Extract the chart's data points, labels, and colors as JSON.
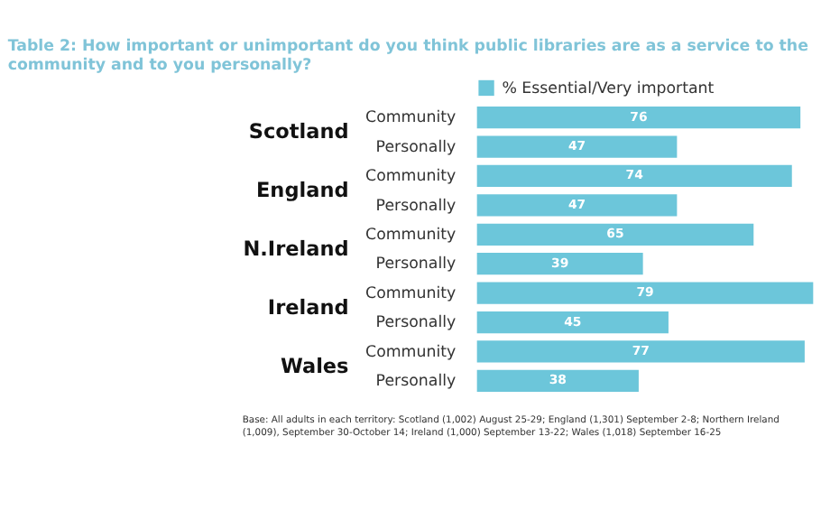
{
  "chart_data": {
    "type": "bar",
    "orientation": "horizontal",
    "title": [
      "Table 2: How important or unimportant do you think public libraries are as a service to the",
      "community and to you personally?"
    ],
    "categories": [
      "Community",
      "Personally",
      "Community",
      "Personally",
      "Community",
      "Personally",
      "Community",
      "Personally",
      "Community",
      "Personally"
    ],
    "series": [
      {
        "name": "% Essential/Very important",
        "color": "#6cc6da",
        "values": [
          76,
          47,
          74,
          47,
          65,
          39,
          79,
          45,
          77,
          38
        ]
      }
    ],
    "data_labels": true,
    "legend": "top",
    "tick_labels": "y",
    "grid": false,
    "annotations": [
      "Scotland",
      "England",
      "N.Ireland",
      "Ireland",
      "Wales",
      "Base: All adults in each territory: Scotland (1,002) August 25-29; England (1,301) September 2-8; Northern Ireland\n(1,009), September 30-October 14; Ireland (1,000) September 13-22; Wales (1,018) September 16-25"
    ]
  }
}
